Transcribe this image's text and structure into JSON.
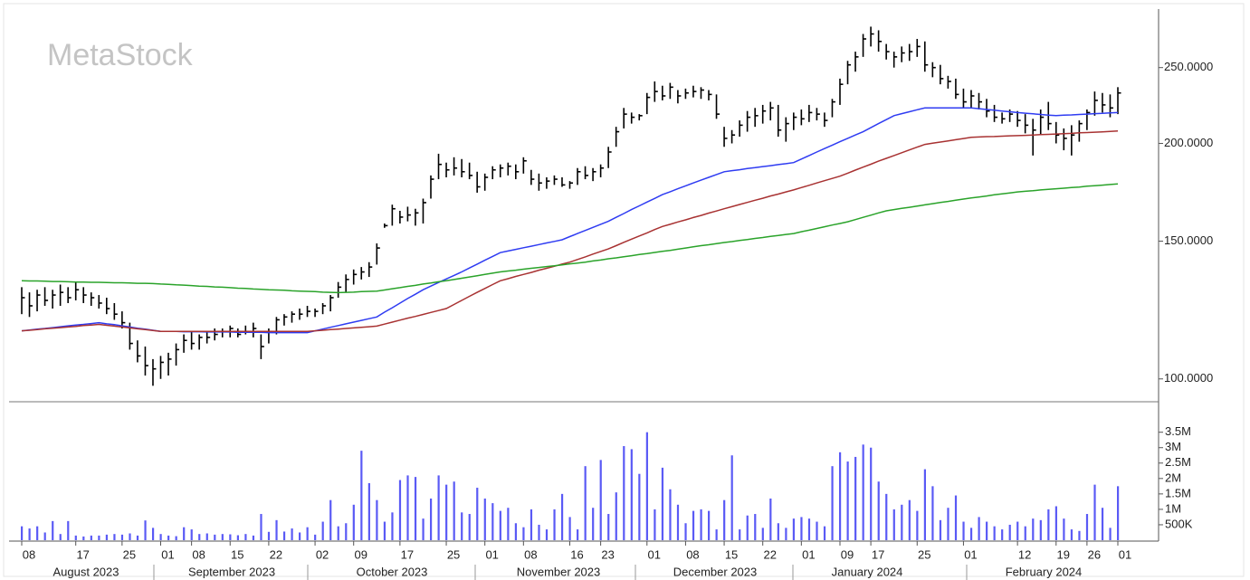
{
  "watermark": "MetaStock",
  "x_axis": {
    "months": [
      "August 2023",
      "September 2023",
      "October 2023",
      "November 2023",
      "December 2023",
      "January 2024",
      "February 2024"
    ]
  },
  "chart_data": [
    {
      "type": "ohlc",
      "log_scale": true,
      "color": "#000000",
      "categories": [
        "08",
        null,
        null,
        null,
        null,
        null,
        null,
        "17",
        null,
        null,
        null,
        null,
        null,
        "25",
        null,
        null,
        null,
        null,
        "01",
        null,
        null,
        null,
        "08",
        null,
        null,
        null,
        null,
        "15",
        null,
        null,
        null,
        null,
        "22",
        null,
        null,
        null,
        null,
        null,
        "02",
        null,
        null,
        null,
        null,
        "09",
        null,
        null,
        null,
        null,
        null,
        "17",
        null,
        null,
        null,
        null,
        null,
        "25",
        null,
        null,
        null,
        null,
        "01",
        null,
        null,
        null,
        null,
        "08",
        null,
        null,
        null,
        null,
        null,
        "16",
        null,
        null,
        null,
        "23",
        null,
        null,
        null,
        null,
        null,
        "01",
        null,
        null,
        null,
        null,
        "08",
        null,
        null,
        null,
        null,
        "15",
        null,
        null,
        null,
        null,
        "22",
        null,
        null,
        null,
        null,
        "01",
        null,
        null,
        null,
        null,
        "09",
        null,
        null,
        null,
        "17",
        null,
        null,
        null,
        null,
        null,
        "25",
        null,
        null,
        null,
        null,
        null,
        "01",
        null,
        null,
        null,
        null,
        null,
        null,
        "12",
        null,
        null,
        null,
        null,
        "19",
        null,
        null,
        null,
        "26",
        null,
        null,
        null,
        "01"
      ],
      "high": [
        131,
        129,
        130,
        131,
        130,
        132,
        131,
        133,
        131,
        129,
        128,
        127,
        125,
        122,
        118,
        112,
        110,
        106,
        107,
        108,
        111,
        114,
        115,
        114,
        115,
        116,
        116,
        117,
        116,
        117,
        118,
        114,
        116,
        120,
        121,
        122,
        123,
        124,
        123,
        125,
        128,
        133,
        136,
        138,
        139,
        141,
        149,
        158,
        167,
        164,
        166,
        165,
        170,
        182,
        194,
        189,
        192,
        191,
        189,
        184,
        183,
        187,
        188,
        189,
        188,
        192,
        185,
        183,
        181,
        182,
        181,
        179,
        186,
        187,
        186,
        188,
        198,
        210,
        222,
        219,
        218,
        232,
        240,
        237,
        239,
        234,
        235,
        237,
        236,
        234,
        231,
        210,
        208,
        214,
        220,
        222,
        224,
        226,
        224,
        216,
        219,
        221,
        224,
        222,
        219,
        228,
        242,
        255,
        262,
        276,
        282,
        279,
        268,
        262,
        266,
        268,
        272,
        270,
        254,
        252,
        244,
        242,
        235,
        234,
        232,
        228,
        224,
        219,
        221,
        220,
        218,
        215,
        221,
        226,
        213,
        209,
        211,
        214,
        221,
        233,
        232,
        231,
        236
      ],
      "low": [
        121,
        120,
        122,
        124,
        123,
        124,
        125,
        126,
        125,
        124,
        123,
        121,
        119,
        116,
        109,
        105,
        101,
        98,
        100,
        101,
        104,
        108,
        109,
        109,
        111,
        112,
        113,
        113,
        113,
        114,
        113,
        106,
        111,
        114,
        117,
        118,
        119,
        120,
        120,
        121,
        122,
        127,
        129,
        132,
        134,
        135,
        140,
        156,
        157,
        158,
        159,
        157,
        158,
        170,
        180,
        181,
        182,
        181,
        180,
        173,
        174,
        180,
        181,
        182,
        180,
        183,
        177,
        174,
        175,
        177,
        176,
        175,
        177,
        180,
        179,
        181,
        186,
        198,
        209,
        212,
        214,
        218,
        226,
        227,
        228,
        225,
        228,
        229,
        228,
        227,
        215,
        198,
        200,
        204,
        207,
        210,
        212,
        214,
        204,
        201,
        208,
        211,
        213,
        214,
        210,
        216,
        224,
        238,
        247,
        258,
        266,
        262,
        256,
        250,
        254,
        255,
        258,
        247,
        243,
        238,
        235,
        228,
        222,
        222,
        221,
        216,
        213,
        212,
        213,
        210,
        206,
        193,
        205,
        208,
        200,
        196,
        193,
        201,
        208,
        217,
        219,
        216,
        218
      ],
      "close": [
        127,
        124,
        128,
        126,
        128,
        129,
        127,
        130,
        128,
        127,
        125,
        123,
        121,
        118,
        111,
        107,
        104,
        103,
        105,
        106,
        109,
        112,
        111,
        113,
        113,
        114,
        115,
        116,
        114,
        115,
        116,
        110,
        115,
        119,
        120,
        121,
        121,
        122,
        122,
        124,
        127,
        131,
        134,
        136,
        137,
        139,
        147,
        157,
        165,
        161,
        162,
        163,
        168,
        180,
        188,
        185,
        186,
        184,
        182,
        176,
        181,
        185,
        186,
        187,
        184,
        190,
        180,
        178,
        179,
        180,
        177,
        178,
        184,
        182,
        184,
        186,
        195,
        207,
        218,
        216,
        217,
        229,
        233,
        230,
        236,
        230,
        232,
        233,
        234,
        231,
        218,
        203,
        205,
        211,
        216,
        217,
        220,
        222,
        208,
        212,
        216,
        215,
        219,
        218,
        214,
        226,
        238,
        252,
        258,
        272,
        276,
        270,
        262,
        258,
        261,
        262,
        266,
        252,
        250,
        242,
        240,
        231,
        226,
        230,
        226,
        220,
        216,
        215,
        218,
        214,
        211,
        208,
        216,
        212,
        205,
        203,
        205,
        212,
        219,
        227,
        224,
        222,
        232
      ],
      "series": [
        {
          "color": "#2f3cf2",
          "values": [
            115.2,
            115.5,
            115.8,
            116.0,
            116.3,
            116.6,
            116.9,
            117.2,
            117.4,
            117.7,
            118.0,
            117.6,
            117.3,
            116.9,
            116.5,
            116.1,
            115.8,
            115.4,
            115.0,
            115,
            115,
            114.9,
            114.9,
            114.9,
            114.8,
            114.8,
            114.8,
            114.8,
            114.7,
            114.7,
            114.7,
            114.7,
            114.6,
            114.6,
            114.6,
            114.6,
            114.6,
            114.6,
            115.2,
            115.8,
            116.4,
            117,
            117.6,
            118.2,
            118.8,
            119.4,
            120,
            121.7,
            123.3,
            125,
            126.7,
            128.3,
            130,
            131.4,
            132.8,
            134.2,
            135.6,
            137,
            138.6,
            140.2,
            141.8,
            143.4,
            145,
            145.7,
            146.4,
            147.1,
            147.8,
            148.5,
            149.2,
            149.9,
            150.6,
            152,
            153.4,
            154.8,
            156.2,
            157.6,
            159,
            160.9,
            162.7,
            164.6,
            166.4,
            168.3,
            170.1,
            172,
            173.5,
            175,
            176.5,
            178,
            179.5,
            181,
            182.5,
            184,
            184.6,
            185.1,
            185.7,
            186.2,
            186.8,
            187.3,
            187.9,
            188.4,
            189,
            191,
            193,
            195,
            197,
            199,
            201,
            203,
            205,
            207,
            209.5,
            212,
            214.5,
            217,
            218.3,
            219.5,
            220.8,
            222,
            222,
            222,
            222,
            222,
            222,
            222,
            221.5,
            221,
            220.5,
            220,
            219.5,
            219,
            218.6,
            218.2,
            217.8,
            217.4,
            217,
            217.3,
            217.5,
            217.8,
            218,
            218.3,
            218.5,
            218.8,
            219
          ]
        },
        {
          "color": "#a83232",
          "values": [
            115.2,
            115.4,
            115.6,
            115.9,
            116.1,
            116.3,
            116.5,
            116.7,
            117,
            117.2,
            117.4,
            117.1,
            116.8,
            116.5,
            116.2,
            115.9,
            115.6,
            115.3,
            115,
            115,
            115,
            115,
            115,
            115,
            115,
            115,
            115,
            115,
            115,
            115,
            115,
            115,
            115,
            115,
            115,
            115,
            115,
            115,
            115.2,
            115.4,
            115.6,
            115.8,
            116,
            116.2,
            116.4,
            116.6,
            116.8,
            117.5,
            118.2,
            118.9,
            119.6,
            120.2,
            120.9,
            121.6,
            122.3,
            123,
            124.5,
            126,
            127.5,
            129,
            130.5,
            132,
            133.5,
            134.3,
            135.2,
            136,
            136.8,
            137.7,
            138.5,
            139.3,
            140.2,
            141,
            142.1,
            143.2,
            144.4,
            145.5,
            146.6,
            148,
            149.5,
            150.9,
            152.3,
            153.7,
            155.2,
            156.6,
            157.6,
            158.7,
            159.7,
            160.8,
            161.8,
            162.9,
            163.9,
            165,
            166,
            167.1,
            168.1,
            169.2,
            170.2,
            171.3,
            172.3,
            173.4,
            174.4,
            175.6,
            176.8,
            178,
            179.2,
            180.4,
            181.6,
            183.2,
            184.9,
            186.5,
            188.1,
            189.8,
            191.4,
            193,
            194.6,
            196.2,
            197.8,
            199.4,
            200.1,
            200.8,
            201.5,
            202.2,
            202.9,
            203.6,
            203.8,
            204,
            204.1,
            204.3,
            204.5,
            204.6,
            204.8,
            205,
            205.2,
            205.4,
            205.6,
            205.8,
            206,
            206.3,
            206.5,
            206.7,
            206.9,
            207.2,
            207.4
          ]
        },
        {
          "color": "#2aa32a",
          "values": [
            133.5,
            133.4,
            133.4,
            133.3,
            133.2,
            133.2,
            133.1,
            133.0,
            133.0,
            132.9,
            132.9,
            132.8,
            132.7,
            132.7,
            132.6,
            132.5,
            132.5,
            132.4,
            132.2,
            132.1,
            131.9,
            131.8,
            131.6,
            131.4,
            131.3,
            131.1,
            131,
            130.8,
            130.6,
            130.5,
            130.3,
            130.2,
            130,
            129.9,
            129.8,
            129.6,
            129.5,
            129.4,
            129.3,
            129.1,
            129,
            128.9,
            129,
            129.1,
            129.3,
            129.4,
            129.5,
            129.9,
            130.4,
            130.8,
            131.3,
            131.7,
            132.2,
            132.6,
            133.1,
            133.5,
            134,
            134.5,
            135,
            135.5,
            136,
            136.5,
            137,
            137.4,
            137.7,
            138.1,
            138.5,
            138.8,
            139.2,
            139.5,
            139.9,
            140.3,
            140.6,
            141,
            141.5,
            141.9,
            142.4,
            142.8,
            143.3,
            143.7,
            144.2,
            144.6,
            145.1,
            145.6,
            146,
            146.5,
            147,
            147.5,
            148,
            148.4,
            148.9,
            149.4,
            149.8,
            150.3,
            150.7,
            151.2,
            151.6,
            152.1,
            152.5,
            153,
            153.4,
            154.2,
            154.9,
            155.7,
            156.5,
            157.3,
            158,
            158.8,
            159.8,
            160.9,
            161.9,
            163,
            164,
            164.6,
            165.2,
            165.7,
            166.3,
            166.9,
            167.5,
            168.1,
            168.6,
            169.2,
            169.8,
            170.3,
            170.8,
            171.3,
            171.9,
            172.4,
            172.9,
            173.4,
            173.7,
            174,
            174.4,
            174.7,
            175,
            175.3,
            175.6,
            175.9,
            176.3,
            176.6,
            176.9,
            177.2,
            177.5
          ]
        }
      ],
      "ylim": [
        93.5,
        297
      ],
      "yticks": [
        {
          "value": 100,
          "label": "100.0000"
        },
        {
          "value": 150,
          "label": "150.0000"
        },
        {
          "value": 200,
          "label": "200.0000"
        },
        {
          "value": 250,
          "label": "250.0000"
        }
      ]
    },
    {
      "type": "bar",
      "color": "#5a5af5",
      "values": [
        450000,
        380000,
        450000,
        250000,
        620000,
        200000,
        620000,
        150000,
        120000,
        150000,
        150000,
        180000,
        200000,
        180000,
        220000,
        150000,
        640000,
        400000,
        200000,
        150000,
        130000,
        420000,
        350000,
        200000,
        220000,
        180000,
        200000,
        190000,
        160000,
        200000,
        150000,
        850000,
        270000,
        650000,
        280000,
        380000,
        250000,
        420000,
        180000,
        600000,
        1300000,
        450000,
        550000,
        1150000,
        2900000,
        1850000,
        1300000,
        600000,
        900000,
        1950000,
        2100000,
        2050000,
        700000,
        1350000,
        2100000,
        1800000,
        1900000,
        900000,
        850000,
        1700000,
        1350000,
        1200000,
        950000,
        1050000,
        550000,
        420000,
        1000000,
        500000,
        350000,
        1000000,
        1500000,
        750000,
        350000,
        2400000,
        1050000,
        2600000,
        850000,
        1550000,
        3050000,
        2950000,
        2150000,
        3500000,
        1000000,
        2350000,
        1650000,
        1150000,
        550000,
        950000,
        1000000,
        950000,
        350000,
        1300000,
        2750000,
        350000,
        800000,
        850000,
        400000,
        1350000,
        550000,
        400000,
        700000,
        750000,
        700000,
        600000,
        450000,
        2400000,
        2850000,
        2550000,
        2700000,
        3100000,
        3000000,
        1900000,
        1500000,
        1000000,
        1150000,
        1300000,
        950000,
        2300000,
        1750000,
        650000,
        1050000,
        1450000,
        600000,
        400000,
        750000,
        600000,
        450000,
        350000,
        500000,
        600000,
        450000,
        700000,
        650000,
        1000000,
        1100000,
        700000,
        350000,
        300000,
        850000,
        1800000,
        1050000,
        400000,
        1750000
      ],
      "ylim": [
        0,
        4400000
      ],
      "yticks": [
        {
          "value": 500000,
          "label": "500K"
        },
        {
          "value": 1000000,
          "label": "1M"
        },
        {
          "value": 1500000,
          "label": "1.5M"
        },
        {
          "value": 2000000,
          "label": "2M"
        },
        {
          "value": 2500000,
          "label": "2.5M"
        },
        {
          "value": 3000000,
          "label": "3M"
        },
        {
          "value": 3500000,
          "label": "3.5M"
        }
      ]
    }
  ]
}
